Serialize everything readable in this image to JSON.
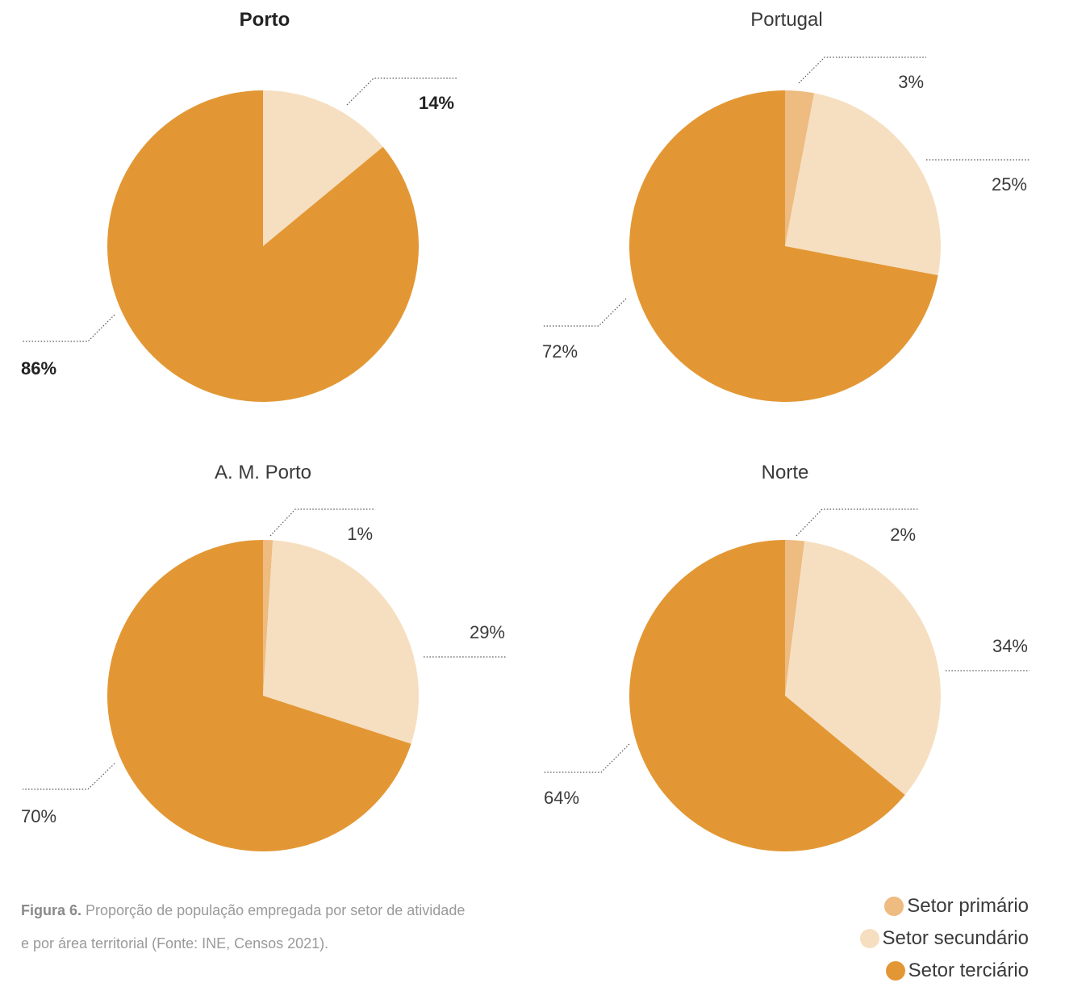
{
  "chart_data": [
    {
      "type": "pie",
      "title": "Porto",
      "title_bold": true,
      "labels_bold": true,
      "categories": [
        "Setor primário",
        "Setor secundário",
        "Setor terciário"
      ],
      "values": [
        0,
        14,
        86
      ],
      "value_labels": [
        "",
        "14%",
        "86%"
      ]
    },
    {
      "type": "pie",
      "title": "Portugal",
      "title_bold": false,
      "labels_bold": false,
      "categories": [
        "Setor primário",
        "Setor secundário",
        "Setor terciário"
      ],
      "values": [
        3,
        25,
        72
      ],
      "value_labels": [
        "3%",
        "25%",
        "72%"
      ]
    },
    {
      "type": "pie",
      "title": "A. M. Porto",
      "title_bold": false,
      "labels_bold": false,
      "categories": [
        "Setor primário",
        "Setor secundário",
        "Setor terciário"
      ],
      "values": [
        1,
        29,
        70
      ],
      "value_labels": [
        "1%",
        "29%",
        "70%"
      ]
    },
    {
      "type": "pie",
      "title": "Norte",
      "title_bold": false,
      "labels_bold": false,
      "categories": [
        "Setor primário",
        "Setor secundário",
        "Setor terciário"
      ],
      "values": [
        2,
        34,
        64
      ],
      "value_labels": [
        "2%",
        "34%",
        "64%"
      ]
    }
  ],
  "colors": {
    "primario": "#eebb80",
    "secundario": "#f6dfc0",
    "terciario": "#e39734"
  },
  "legend": [
    {
      "label": "Setor primário",
      "color_key": "primario"
    },
    {
      "label": "Setor secundário",
      "color_key": "secundario"
    },
    {
      "label": "Setor terciário",
      "color_key": "terciario"
    }
  ],
  "caption": {
    "figure": "Figura 6.",
    "text": " Proporção de população empregada por setor de atividade e por área territorial (Fonte: INE, Censos 2021)."
  }
}
